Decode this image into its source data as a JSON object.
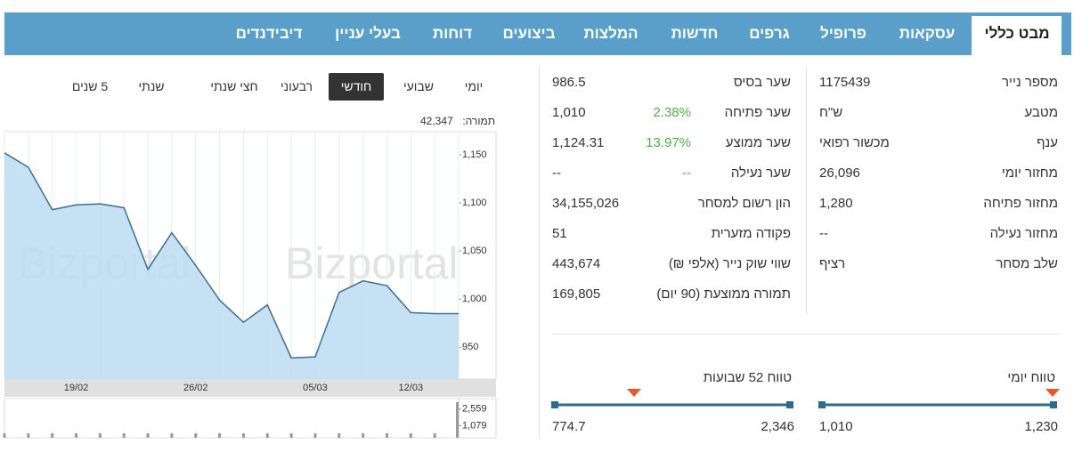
{
  "tabs": [
    "מבט כללי",
    "עסקאות",
    "פרופיל",
    "גרפים",
    "חדשות",
    "המלצות",
    "ביצועים",
    "דוחות",
    "בעלי עניין",
    "דיבידנדים"
  ],
  "periods": [
    "יומי",
    "שבועי",
    "חודשי",
    "רבעוני",
    "חצי שנתי",
    "שנתי",
    "5 שנים"
  ],
  "turnover": {
    "label": "תמורה:",
    "value": "42,347"
  },
  "watermark": "Bizportal",
  "chart_data": [
    {
      "type": "area",
      "color": "#bcdcf1",
      "line_color": "#3d6f92",
      "categories": [
        null,
        null,
        null,
        "19/02",
        null,
        null,
        null,
        null,
        "26/02",
        null,
        null,
        null,
        null,
        "05/03",
        null,
        null,
        null,
        "12/03",
        null,
        null
      ],
      "values": [
        1152,
        1137,
        1093,
        1098,
        1099,
        1095,
        1031,
        1069,
        1035,
        999,
        976,
        994,
        939,
        940,
        1007,
        1019,
        1014,
        986,
        985,
        985
      ],
      "ylim": [
        917,
        1174
      ],
      "yticks": [
        {
          "value": 950,
          "label": "950"
        },
        {
          "value": 1000,
          "label": "1,000"
        },
        {
          "value": 1050,
          "label": "1,050"
        },
        {
          "value": 1100,
          "label": "1,100"
        },
        {
          "value": 1150,
          "label": "1,150"
        }
      ]
    },
    {
      "type": "bar",
      "color": "#9a9a9a",
      "values": [
        400,
        400,
        400,
        400,
        400,
        400,
        400,
        400,
        400,
        400,
        400,
        400,
        400,
        400,
        400,
        400,
        400,
        400,
        400,
        3180
      ],
      "ylim": [
        0,
        3500
      ],
      "yticks": [
        {
          "value": 1079,
          "label": "1,079"
        },
        {
          "value": 2559,
          "label": "2,559"
        }
      ]
    }
  ],
  "info_right": [
    {
      "label": "מספר נייר",
      "value": "1175439"
    },
    {
      "label": "מטבע",
      "value": "ש\"ח"
    },
    {
      "label": "ענף",
      "value": "מכשור רפואי"
    },
    {
      "label": "מחזור יומי",
      "value": "26,096"
    },
    {
      "label": "מחזור פתיחה",
      "value": "1,280"
    },
    {
      "label": "מחזור נעילה",
      "value": "--"
    },
    {
      "label": "שלב מסחר",
      "value": "רציף"
    }
  ],
  "info_middle": [
    {
      "label": "שער בסיס",
      "value": "986.5"
    },
    {
      "label": "שער פתיחה",
      "value": "1,010",
      "change": "2.38%"
    },
    {
      "label": "שער ממוצע",
      "value": "1,124.31",
      "change": "13.97%"
    },
    {
      "label": "שער נעילה",
      "value": "--",
      "change": "--"
    },
    {
      "label": "הון רשום למסחר",
      "value": "34,155,026"
    },
    {
      "label": "פקודה מזערית",
      "value": "51"
    },
    {
      "label": "שווי שוק נייר (אלפי ₪)",
      "value": "443,674"
    },
    {
      "label": "תמורה ממוצעת (90 יום)",
      "value": "169,805"
    }
  ],
  "ranges": [
    {
      "title": "טווח יומי",
      "low": "1,010",
      "high": "1,230"
    },
    {
      "title": "טווח 52 שבועות",
      "low": "774.7",
      "high": "2,346"
    }
  ]
}
